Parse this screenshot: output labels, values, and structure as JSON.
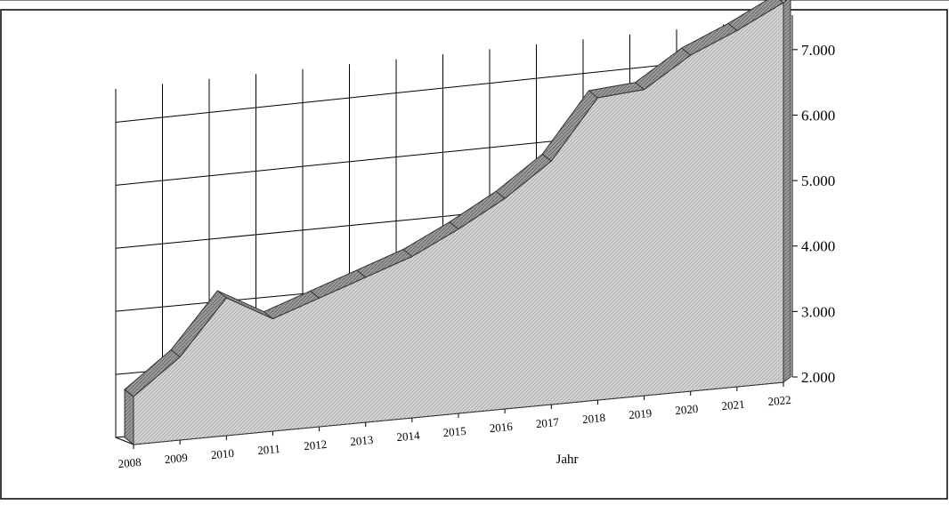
{
  "chart_data": {
    "type": "area",
    "title": "",
    "xlabel": "Jahr",
    "ylabel": "",
    "categories": [
      "2008",
      "2009",
      "2010",
      "2011",
      "2012",
      "2013",
      "2014",
      "2015",
      "2016",
      "2017",
      "2018",
      "2019",
      "2020",
      "2021",
      "2022"
    ],
    "series": [
      {
        "values": [
          2750,
          3300,
          4150,
          3750,
          4000,
          4250,
          4500,
          4850,
          5250,
          5750,
          6650,
          6700,
          7150,
          7450,
          7800
        ]
      }
    ],
    "ylim": [
      2000,
      7500
    ],
    "yticks": [
      2000,
      3000,
      4000,
      5000,
      6000,
      7000
    ],
    "ytick_labels": [
      "2.000",
      "3.000",
      "4.000",
      "5.000",
      "6.000",
      "7.000"
    ],
    "grid": true,
    "legend": "none",
    "style": "3d-perspective",
    "colors": {
      "fill": "#d4d4d4",
      "edge": "#808080",
      "grid": "#000000"
    }
  }
}
